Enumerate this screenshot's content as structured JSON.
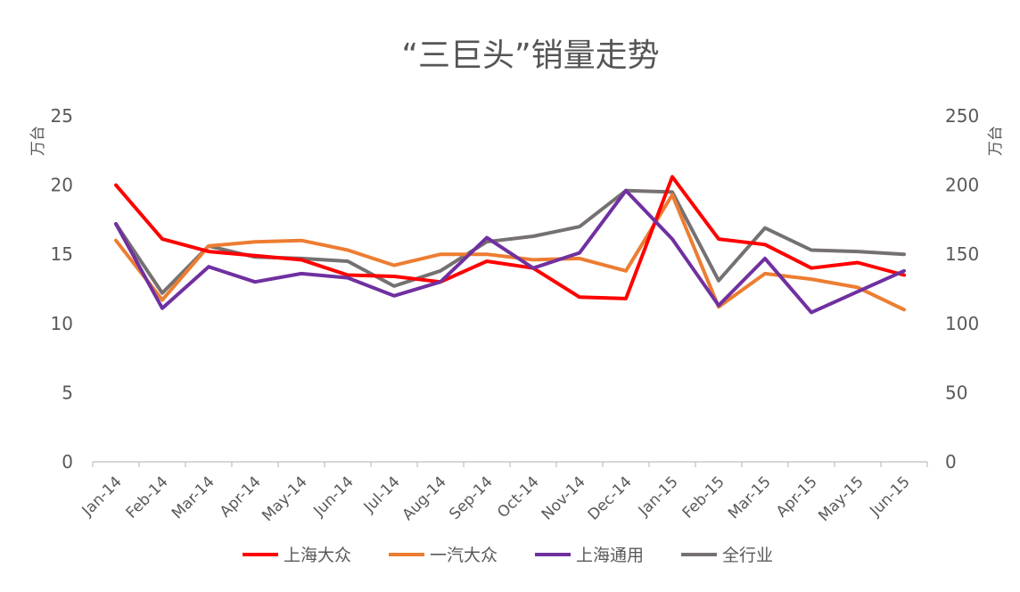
{
  "chart_data": {
    "type": "line",
    "title": "“三巨头”销量走势",
    "ylabel": "万台",
    "y2label": "万台",
    "ylim": [
      0,
      25
    ],
    "y2lim": [
      0,
      250
    ],
    "yticks": [
      "0",
      "5",
      "10",
      "15",
      "20",
      "25"
    ],
    "y2ticks": [
      "0",
      "50",
      "100",
      "150",
      "200",
      "250"
    ],
    "categories": [
      "Jan-14",
      "Feb-14",
      "Mar-14",
      "Apr-14",
      "May-14",
      "Jun-14",
      "Jul-14",
      "Aug-14",
      "Sep-14",
      "Oct-14",
      "Nov-14",
      "Dec-14",
      "Jan-15",
      "Feb-15",
      "Mar-15",
      "Apr-15",
      "May-15",
      "Jun-15"
    ],
    "grid": false,
    "legend_position": "bottom",
    "series": [
      {
        "name": "上海大众",
        "color": "#FF0000",
        "axis": "left",
        "values": [
          20.0,
          16.1,
          15.2,
          14.9,
          14.6,
          13.5,
          13.4,
          13.0,
          14.5,
          14.0,
          11.9,
          11.8,
          20.6,
          16.1,
          15.7,
          14.0,
          14.4,
          13.5
        ]
      },
      {
        "name": "一汽大众",
        "color": "#ED7D31",
        "axis": "left",
        "values": [
          16.0,
          11.7,
          15.6,
          15.9,
          16.0,
          15.3,
          14.2,
          15.0,
          15.0,
          14.6,
          14.7,
          13.8,
          19.3,
          11.2,
          13.6,
          13.2,
          12.6,
          11.0
        ]
      },
      {
        "name": "上海通用",
        "color": "#7030A0",
        "axis": "left",
        "values": [
          17.2,
          11.1,
          14.1,
          13.0,
          13.6,
          13.3,
          12.0,
          13.0,
          16.2,
          14.0,
          15.1,
          19.6,
          16.1,
          11.3,
          14.7,
          10.8,
          12.3,
          13.8
        ]
      },
      {
        "name": "全行业",
        "color": "#767171",
        "axis": "right",
        "values": [
          172,
          122,
          156,
          148,
          147,
          145,
          127,
          138,
          159,
          163,
          170,
          196,
          195,
          131,
          169,
          153,
          152,
          150
        ]
      }
    ]
  }
}
